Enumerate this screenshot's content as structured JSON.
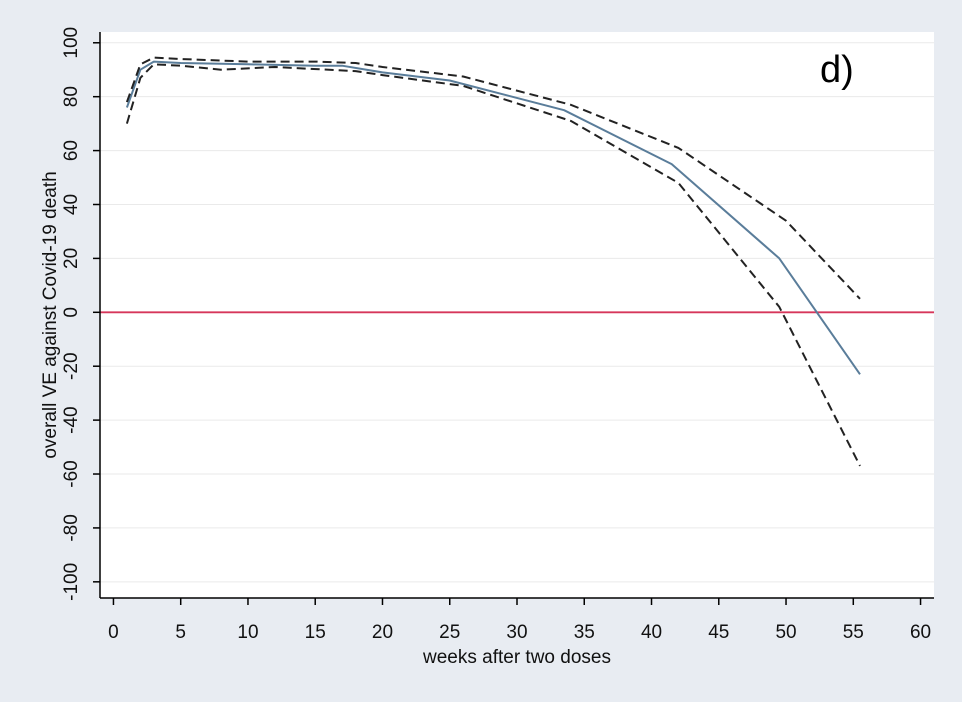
{
  "chart_data": {
    "type": "line",
    "panel_label": "d)",
    "xlabel": "weeks after two doses",
    "ylabel": "overall VE against Covid-19 death",
    "xlim": [
      -1,
      61
    ],
    "ylim": [
      -106,
      104
    ],
    "x_ticks": [
      0,
      5,
      10,
      15,
      20,
      25,
      30,
      35,
      40,
      45,
      50,
      55,
      60
    ],
    "y_ticks": [
      100,
      80,
      60,
      40,
      20,
      0,
      -20,
      -40,
      -60,
      -80,
      -100
    ],
    "grid": true,
    "reference_line": {
      "y": 0,
      "color": "#d6365a"
    },
    "series": [
      {
        "role": "estimate",
        "color": "#5a7d9a",
        "x": [
          1,
          2,
          3,
          5,
          10,
          15,
          17,
          20,
          25,
          33.5,
          41.5,
          49.5,
          55.5
        ],
        "y": [
          76,
          90,
          93,
          92.5,
          92,
          91.5,
          91.5,
          89,
          86,
          75,
          55,
          20,
          -23
        ]
      },
      {
        "role": "upper-ci",
        "color": "#222222",
        "x": [
          1,
          2,
          3,
          5,
          10,
          15,
          18,
          20,
          26,
          34,
          42,
          50,
          55.5
        ],
        "y": [
          78,
          92,
          94.5,
          94,
          93,
          93,
          92.5,
          91,
          87.5,
          77,
          61,
          34,
          5
        ]
      },
      {
        "role": "lower-ci",
        "color": "#222222",
        "x": [
          1,
          2,
          3,
          5,
          8,
          12,
          18,
          20,
          26,
          34,
          42,
          49.5,
          55.5
        ],
        "y": [
          70,
          87,
          92,
          91.5,
          90,
          91,
          89.5,
          88,
          84,
          71,
          48,
          2,
          -57
        ]
      }
    ]
  }
}
